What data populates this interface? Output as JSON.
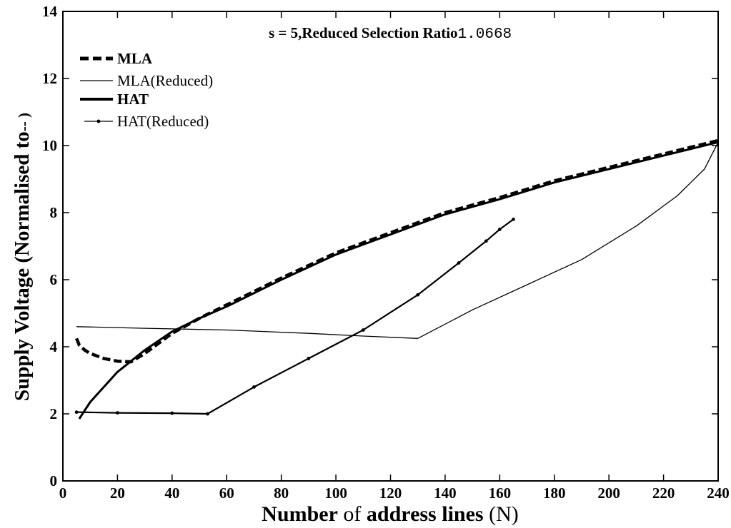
{
  "chart_data": {
    "type": "line",
    "title": "s = 5,Reduced Selection Ratio",
    "title_value": "1.0668",
    "xlabel_parts": [
      "Number",
      " of ",
      "address lines",
      " (N)"
    ],
    "ylabel": "Supply Voltage (Normalised to",
    "ylabel_tail": "-- )",
    "xlim": [
      0,
      240
    ],
    "ylim": [
      0,
      14
    ],
    "xticks": [
      0,
      20,
      40,
      60,
      80,
      100,
      120,
      140,
      160,
      180,
      200,
      220,
      240
    ],
    "yticks": [
      0,
      2,
      4,
      6,
      8,
      10,
      12,
      14
    ],
    "grid": false,
    "legend_placement": "top-left",
    "series": [
      {
        "name": "MLA",
        "style": "dashed-thick",
        "x": [
          5,
          6,
          8,
          10,
          15,
          20,
          25,
          30,
          40,
          50,
          60,
          80,
          100,
          120,
          140,
          160,
          180,
          200,
          220,
          240
        ],
        "y": [
          4.25,
          4.05,
          3.9,
          3.8,
          3.65,
          3.57,
          3.55,
          3.8,
          4.4,
          4.85,
          5.25,
          6.05,
          6.8,
          7.4,
          8.0,
          8.45,
          8.95,
          9.35,
          9.75,
          10.15
        ]
      },
      {
        "name": "MLA(Reduced)",
        "style": "solid-thin",
        "x": [
          5,
          30,
          60,
          90,
          110,
          130,
          150,
          170,
          190,
          210,
          225,
          235,
          240
        ],
        "y": [
          4.6,
          4.55,
          4.5,
          4.4,
          4.32,
          4.25,
          5.1,
          5.85,
          6.6,
          7.6,
          8.5,
          9.3,
          10.1
        ]
      },
      {
        "name": "HAT",
        "style": "solid-thick",
        "x": [
          6,
          10,
          20,
          30,
          40,
          50,
          60,
          80,
          100,
          120,
          140,
          160,
          180,
          200,
          220,
          240
        ],
        "y": [
          1.85,
          2.35,
          3.25,
          3.9,
          4.45,
          4.85,
          5.2,
          6.0,
          6.75,
          7.35,
          7.95,
          8.4,
          8.9,
          9.3,
          9.7,
          10.1
        ]
      },
      {
        "name": "HAT(Reduced)",
        "style": "solid-dotted",
        "x": [
          5,
          20,
          40,
          53,
          70,
          90,
          110,
          130,
          145,
          155,
          160,
          165
        ],
        "y": [
          2.05,
          2.03,
          2.02,
          2.0,
          2.8,
          3.65,
          4.5,
          5.55,
          6.5,
          7.15,
          7.5,
          7.8
        ]
      }
    ]
  }
}
